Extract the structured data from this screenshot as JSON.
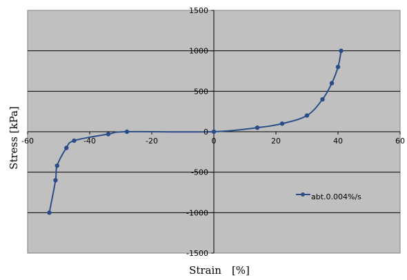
{
  "chart_data": {
    "type": "scatter",
    "xlabel": "Strain　[%]",
    "ylabel": "Stress [kPa]",
    "xlim": [
      -60,
      60
    ],
    "ylim": [
      -1500,
      1500
    ],
    "x_ticks": [
      "-60",
      "-40",
      "-20",
      "0",
      "20",
      "40",
      "60"
    ],
    "y_ticks": [
      "1500",
      "1000",
      "500",
      "0",
      "-500",
      "-1000",
      "-1500"
    ],
    "grid": "horizontal",
    "legend_position": "right",
    "plot_background": "#c0c0c0",
    "series": [
      {
        "name": "abt.0.004%/s",
        "color": "#2a4d88",
        "marker": "circle",
        "line": "smoothed",
        "points": [
          [
            -53,
            -1000
          ],
          [
            -51,
            -600
          ],
          [
            -50.5,
            -420
          ],
          [
            -47.5,
            -200
          ],
          [
            -45,
            -110
          ],
          [
            -34,
            -30
          ],
          [
            -28,
            0
          ],
          [
            0,
            0
          ],
          [
            14,
            50
          ],
          [
            22,
            100
          ],
          [
            30,
            200
          ],
          [
            35,
            400
          ],
          [
            38,
            600
          ],
          [
            40,
            800
          ],
          [
            41,
            1000
          ]
        ]
      }
    ]
  }
}
